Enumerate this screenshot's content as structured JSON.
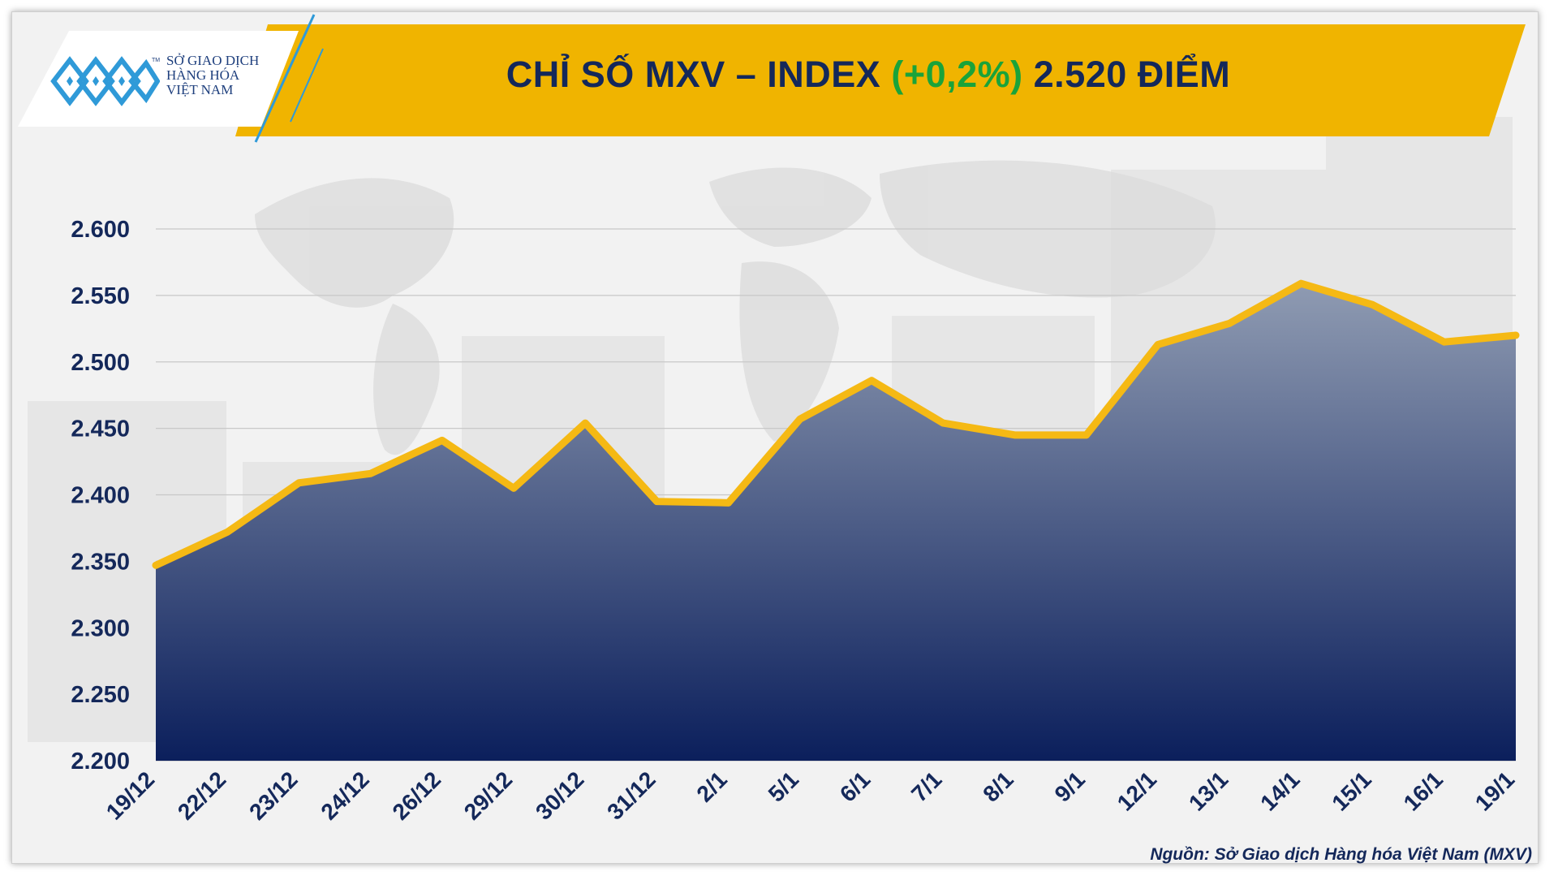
{
  "logo": {
    "line1": "SỞ GIAO DỊCH",
    "line2": "HÀNG HÓA",
    "line3": "VIỆT NAM",
    "tm": "TM",
    "icon": "mxv-logo-icon"
  },
  "header": {
    "title_prefix": "CHỈ SỐ MXV – INDEX ",
    "title_change": "(+0,2%)",
    "title_suffix": " 2.520 ĐIỂM"
  },
  "source": "Nguồn: Sở Giao dịch Hàng hóa Việt Nam (MXV)",
  "colors": {
    "banner": "#f0b400",
    "title": "#14285a",
    "change_positive": "#1aa33a",
    "line": "#f5b914",
    "area_top": "#8f9bb2",
    "area_bottom": "#0b1f5c",
    "axis_text": "#14285a"
  },
  "chart_data": {
    "type": "area",
    "categories": [
      "19/12",
      "22/12",
      "23/12",
      "24/12",
      "26/12",
      "29/12",
      "30/12",
      "31/12",
      "2/1",
      "5/1",
      "6/1",
      "7/1",
      "8/1",
      "9/1",
      "12/1",
      "13/1",
      "14/1",
      "15/1",
      "16/1",
      "19/1"
    ],
    "series": [
      {
        "values": [
          2347,
          2372,
          2409,
          2416,
          2441,
          2405,
          2454,
          2395,
          2394,
          2457,
          2486,
          2454,
          2445,
          2445,
          2513,
          2529,
          2559,
          2543,
          2515,
          2520
        ]
      }
    ],
    "yticks": [
      2200,
      2250,
      2300,
      2350,
      2400,
      2450,
      2500,
      2550,
      2600
    ],
    "ytick_labels": [
      "2.200",
      "2.250",
      "2.300",
      "2.350",
      "2.400",
      "2.450",
      "2.500",
      "2.550",
      "2.600"
    ],
    "ylim": [
      2200,
      2600
    ],
    "grid": true,
    "legend": "none"
  }
}
